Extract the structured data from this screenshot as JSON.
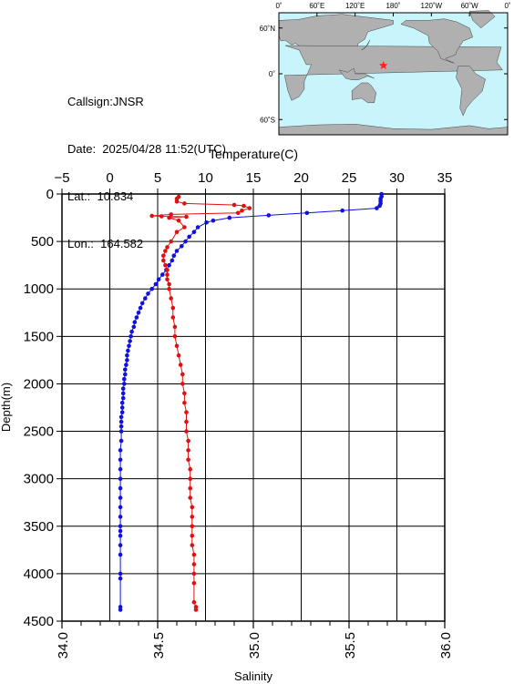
{
  "info": {
    "callsign": "Callsign:JNSR",
    "date": "Date:  2025/04/28 11:52(UTC)",
    "lat": "Lat.:  10.834",
    "lon": "Lon.:  164.582"
  },
  "map": {
    "lon_labels": [
      "0˚",
      "60˚E",
      "120˚E",
      "180˚",
      "120˚W",
      "60˚W",
      "0˚"
    ],
    "lat_labels": [
      "60˚N",
      "0˚",
      "60˚S"
    ],
    "ocean_color": "#c8f4fb",
    "land_color": "#b0b0b0",
    "marker": {
      "lon": 164.582,
      "lat": 10.834,
      "color": "#ff2020",
      "symbol": "star"
    }
  },
  "chart_data": {
    "type": "line",
    "top_axis_label": "Temperature(C)",
    "bottom_axis_label": "Salinity",
    "ylabel": "Depth(m)",
    "temperature_range": [
      -5,
      35
    ],
    "temperature_ticks": [
      "−5",
      "0",
      "5",
      "10",
      "15",
      "20",
      "25",
      "30",
      "35"
    ],
    "salinity_range": [
      34.0,
      36.0
    ],
    "salinity_ticks": [
      "34.0",
      "34.5",
      "35.0",
      "35.5",
      "36.0"
    ],
    "depth_range": [
      0,
      4500
    ],
    "depth_ticks": [
      "0",
      "500",
      "1000",
      "1500",
      "2000",
      "2500",
      "3000",
      "3500",
      "4000",
      "4500"
    ],
    "grid": true,
    "series": [
      {
        "variable": "temperature",
        "color": "#1010e0",
        "points": [
          [
            28.4,
            0
          ],
          [
            28.4,
            25
          ],
          [
            28.3,
            50
          ],
          [
            28.3,
            75
          ],
          [
            28.3,
            100
          ],
          [
            28.2,
            125
          ],
          [
            27.9,
            150
          ],
          [
            24.3,
            175
          ],
          [
            20.6,
            200
          ],
          [
            16.6,
            225
          ],
          [
            12.5,
            250
          ],
          [
            10.8,
            280
          ],
          [
            10.1,
            300
          ],
          [
            9.2,
            350
          ],
          [
            8.8,
            400
          ],
          [
            8.3,
            450
          ],
          [
            7.9,
            500
          ],
          [
            7.5,
            550
          ],
          [
            7.0,
            600
          ],
          [
            6.7,
            650
          ],
          [
            6.5,
            700
          ],
          [
            6.2,
            750
          ],
          [
            5.9,
            800
          ],
          [
            5.5,
            850
          ],
          [
            5.1,
            900
          ],
          [
            4.8,
            950
          ],
          [
            4.4,
            1000
          ],
          [
            4.0,
            1050
          ],
          [
            3.7,
            1100
          ],
          [
            3.4,
            1150
          ],
          [
            3.2,
            1200
          ],
          [
            3.0,
            1250
          ],
          [
            2.8,
            1300
          ],
          [
            2.6,
            1350
          ],
          [
            2.5,
            1400
          ],
          [
            2.3,
            1450
          ],
          [
            2.2,
            1500
          ],
          [
            2.1,
            1550
          ],
          [
            2.0,
            1600
          ],
          [
            1.9,
            1650
          ],
          [
            1.8,
            1700
          ],
          [
            1.8,
            1750
          ],
          [
            1.7,
            1800
          ],
          [
            1.6,
            1850
          ],
          [
            1.6,
            1900
          ],
          [
            1.5,
            1950
          ],
          [
            1.5,
            2000
          ],
          [
            1.4,
            2050
          ],
          [
            1.4,
            2100
          ],
          [
            1.4,
            2150
          ],
          [
            1.3,
            2200
          ],
          [
            1.3,
            2250
          ],
          [
            1.3,
            2300
          ],
          [
            1.2,
            2350
          ],
          [
            1.2,
            2400
          ],
          [
            1.2,
            2450
          ],
          [
            1.2,
            2500
          ],
          [
            1.2,
            2600
          ],
          [
            1.1,
            2700
          ],
          [
            1.1,
            2800
          ],
          [
            1.1,
            2900
          ],
          [
            1.1,
            3000
          ],
          [
            1.1,
            3100
          ],
          [
            1.1,
            3200
          ],
          [
            1.1,
            3300
          ],
          [
            1.1,
            3400
          ],
          [
            1.1,
            3500
          ],
          [
            1.1,
            3550
          ],
          [
            1.1,
            3600
          ],
          [
            1.1,
            3700
          ],
          [
            1.1,
            3800
          ],
          [
            1.1,
            4000
          ],
          [
            1.1,
            4050
          ],
          [
            1.1,
            4350
          ],
          [
            1.1,
            4380
          ]
        ]
      },
      {
        "variable": "salinity",
        "color": "#e01010",
        "points": [
          [
            34.61,
            30
          ],
          [
            34.6,
            50
          ],
          [
            34.6,
            80
          ],
          [
            34.64,
            100
          ],
          [
            34.9,
            115
          ],
          [
            34.95,
            125
          ],
          [
            34.98,
            150
          ],
          [
            34.94,
            175
          ],
          [
            34.92,
            200
          ],
          [
            34.57,
            215
          ],
          [
            34.47,
            230
          ],
          [
            34.52,
            235
          ],
          [
            34.65,
            240
          ],
          [
            34.56,
            250
          ],
          [
            34.61,
            280
          ],
          [
            34.64,
            350
          ],
          [
            34.6,
            400
          ],
          [
            34.57,
            500
          ],
          [
            34.55,
            560
          ],
          [
            34.54,
            600
          ],
          [
            34.53,
            650
          ],
          [
            34.53,
            700
          ],
          [
            34.54,
            750
          ],
          [
            34.55,
            800
          ],
          [
            34.55,
            850
          ],
          [
            34.55,
            900
          ],
          [
            34.56,
            950
          ],
          [
            34.56,
            1000
          ],
          [
            34.57,
            1100
          ],
          [
            34.58,
            1200
          ],
          [
            34.58,
            1300
          ],
          [
            34.59,
            1400
          ],
          [
            34.59,
            1500
          ],
          [
            34.6,
            1600
          ],
          [
            34.61,
            1700
          ],
          [
            34.62,
            1800
          ],
          [
            34.63,
            1900
          ],
          [
            34.63,
            2000
          ],
          [
            34.64,
            2100
          ],
          [
            34.64,
            2200
          ],
          [
            34.65,
            2300
          ],
          [
            34.65,
            2400
          ],
          [
            34.65,
            2500
          ],
          [
            34.66,
            2600
          ],
          [
            34.66,
            2700
          ],
          [
            34.66,
            2800
          ],
          [
            34.67,
            2900
          ],
          [
            34.67,
            3000
          ],
          [
            34.67,
            3100
          ],
          [
            34.67,
            3200
          ],
          [
            34.68,
            3300
          ],
          [
            34.68,
            3400
          ],
          [
            34.68,
            3500
          ],
          [
            34.68,
            3600
          ],
          [
            34.68,
            3700
          ],
          [
            34.69,
            3800
          ],
          [
            34.69,
            3900
          ],
          [
            34.69,
            4000
          ],
          [
            34.69,
            4100
          ],
          [
            34.69,
            4300
          ],
          [
            34.7,
            4350
          ],
          [
            34.7,
            4380
          ]
        ]
      }
    ]
  }
}
